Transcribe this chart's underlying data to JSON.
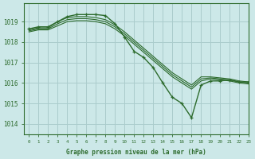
{
  "title": "Graphe pression niveau de la mer (hPa)",
  "background_color": "#cce8e8",
  "grid_color": "#aacccc",
  "line_color": "#2d6b2d",
  "xlim": [
    -0.5,
    23
  ],
  "ylim": [
    1013.5,
    1019.9
  ],
  "yticks": [
    1014,
    1015,
    1016,
    1017,
    1018,
    1019
  ],
  "xticks": [
    0,
    1,
    2,
    3,
    4,
    5,
    6,
    7,
    8,
    9,
    10,
    11,
    12,
    13,
    14,
    15,
    16,
    17,
    18,
    19,
    20,
    21,
    22,
    23
  ],
  "series": [
    {
      "x": [
        0,
        1,
        2,
        3,
        4,
        5,
        6,
        7,
        8,
        9,
        10,
        11,
        12,
        13,
        14,
        15,
        16,
        17,
        18,
        19,
        20,
        21,
        22,
        23
      ],
      "y": [
        1018.65,
        1018.75,
        1018.75,
        1019.0,
        1019.25,
        1019.35,
        1019.35,
        1019.35,
        1019.3,
        1018.9,
        1018.25,
        1017.55,
        1017.25,
        1016.75,
        1016.0,
        1015.3,
        1015.0,
        1014.3,
        1015.9,
        1016.1,
        1016.1,
        1016.15,
        1016.05,
        1016.05
      ],
      "markers": true
    },
    {
      "x": [
        0,
        1,
        2,
        3,
        4,
        5,
        6,
        7,
        8,
        9,
        10,
        11,
        12,
        13,
        14,
        15,
        16,
        17,
        18,
        19,
        20,
        21,
        22,
        23
      ],
      "y": [
        1018.6,
        1018.7,
        1018.7,
        1019.0,
        1019.2,
        1019.25,
        1019.25,
        1019.2,
        1019.1,
        1018.85,
        1018.5,
        1018.1,
        1017.7,
        1017.3,
        1016.9,
        1016.5,
        1016.2,
        1015.9,
        1016.3,
        1016.3,
        1016.25,
        1016.2,
        1016.1,
        1016.05
      ],
      "markers": false
    },
    {
      "x": [
        0,
        1,
        2,
        3,
        4,
        5,
        6,
        7,
        8,
        9,
        10,
        11,
        12,
        13,
        14,
        15,
        16,
        17,
        18,
        19,
        20,
        21,
        22,
        23
      ],
      "y": [
        1018.55,
        1018.65,
        1018.65,
        1018.9,
        1019.1,
        1019.15,
        1019.15,
        1019.1,
        1019.0,
        1018.75,
        1018.4,
        1018.0,
        1017.6,
        1017.2,
        1016.8,
        1016.4,
        1016.1,
        1015.8,
        1016.2,
        1016.25,
        1016.2,
        1016.15,
        1016.05,
        1016.0
      ],
      "markers": false
    },
    {
      "x": [
        0,
        1,
        2,
        3,
        4,
        5,
        6,
        7,
        8,
        9,
        10,
        11,
        12,
        13,
        14,
        15,
        16,
        17,
        18,
        19,
        20,
        21,
        22,
        23
      ],
      "y": [
        1018.5,
        1018.6,
        1018.6,
        1018.8,
        1019.0,
        1019.05,
        1019.05,
        1019.0,
        1018.9,
        1018.65,
        1018.3,
        1017.9,
        1017.5,
        1017.1,
        1016.7,
        1016.3,
        1016.0,
        1015.7,
        1016.1,
        1016.2,
        1016.15,
        1016.1,
        1016.0,
        1015.95
      ],
      "markers": false
    }
  ]
}
